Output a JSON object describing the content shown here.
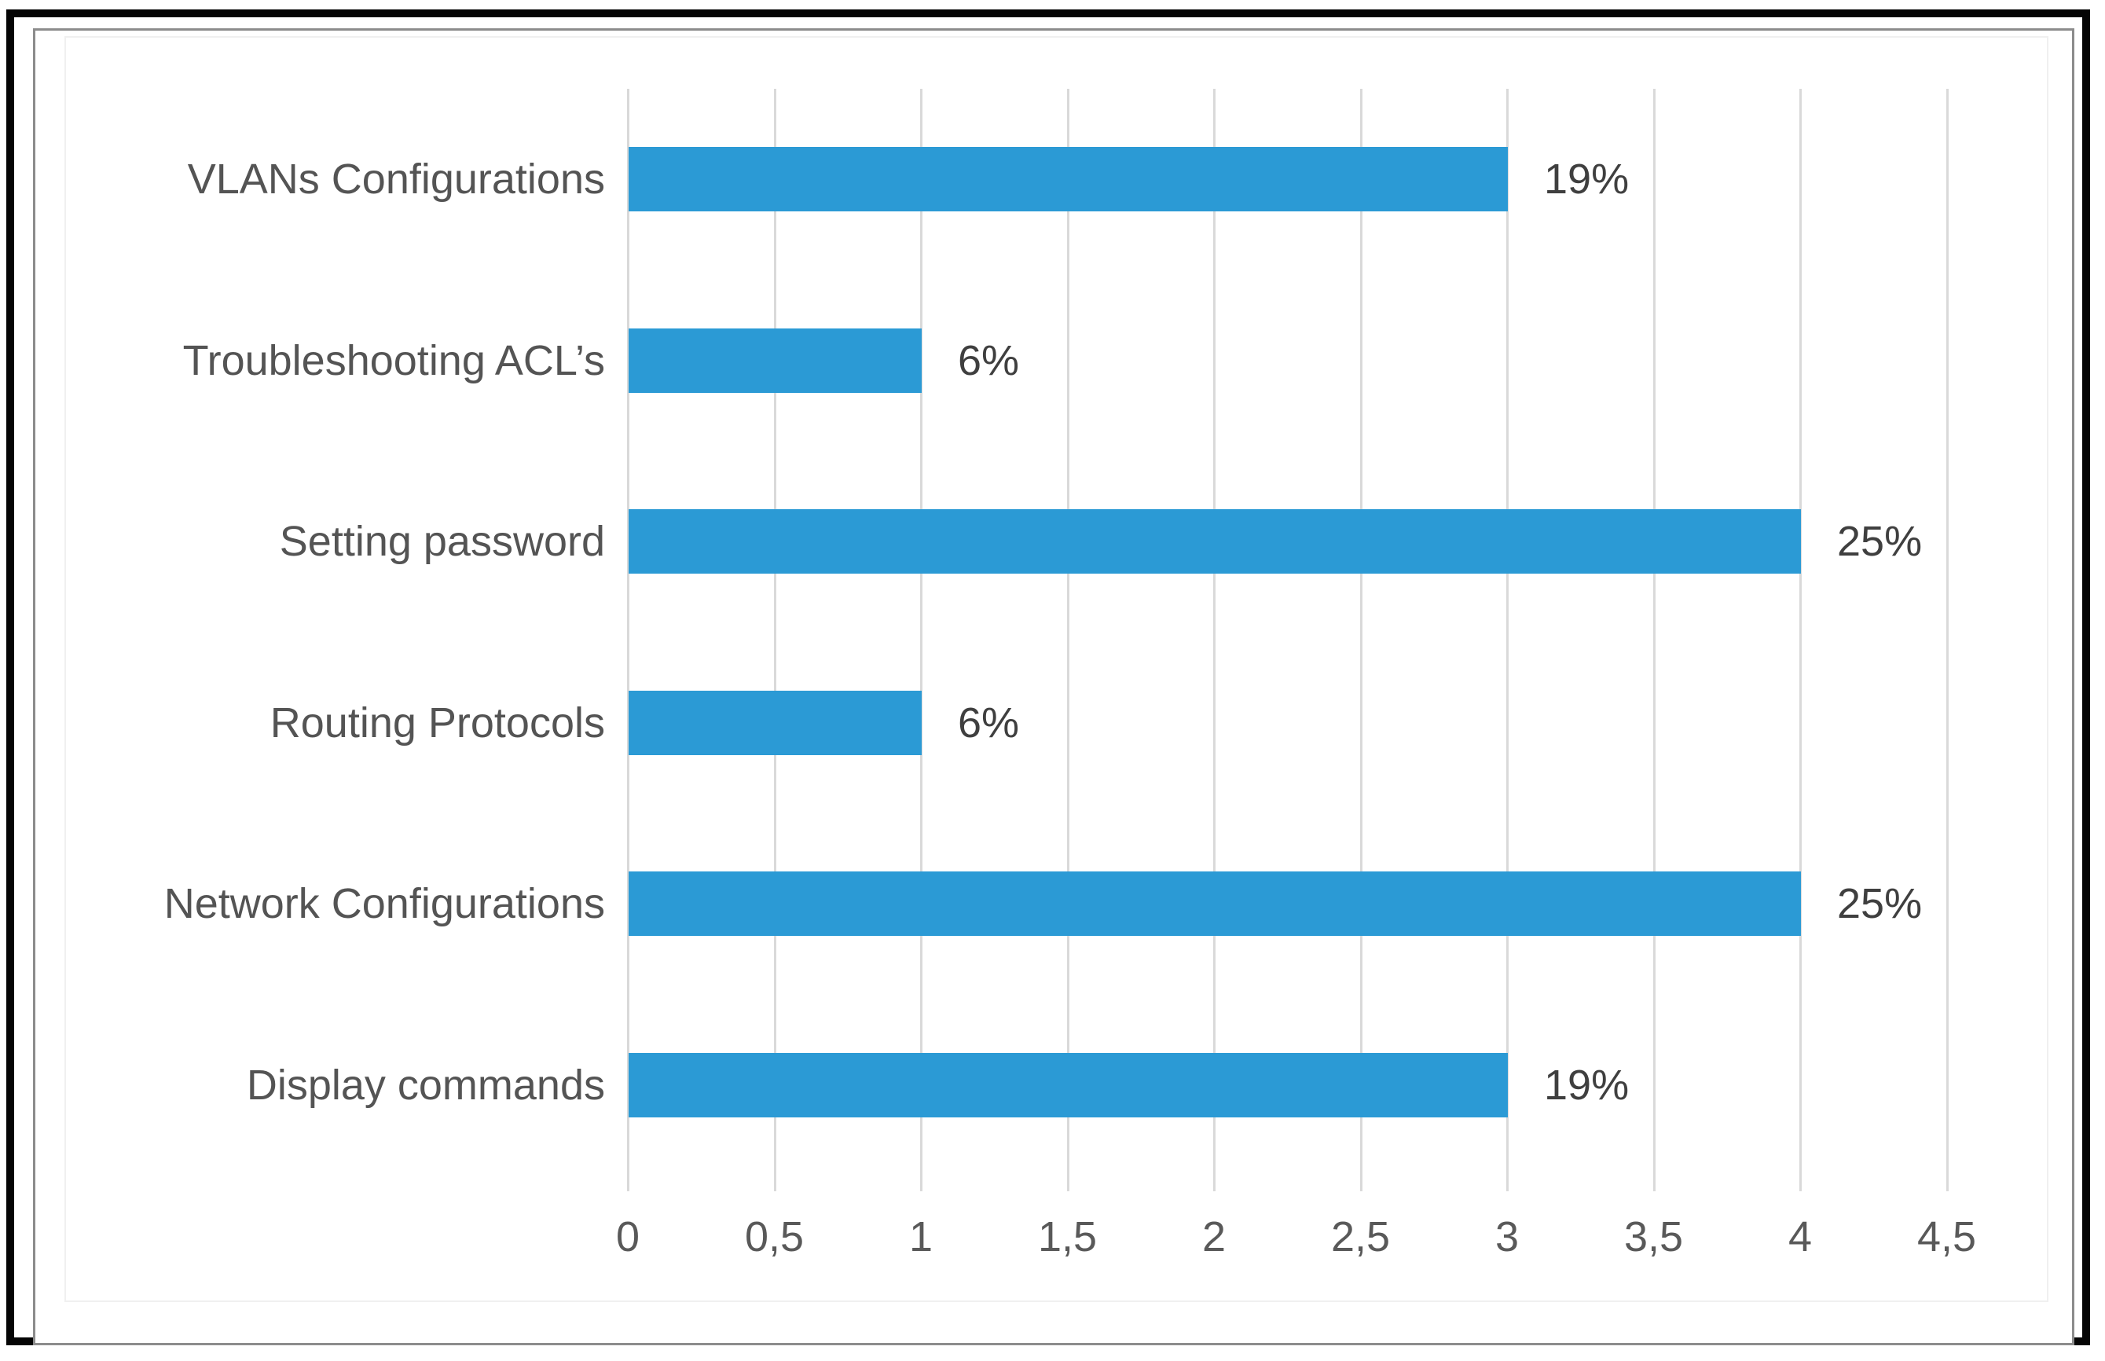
{
  "figure": {
    "background_color": "#ffffff",
    "outer_border_color": "#050505",
    "panel_border_color": "#8c8c8c"
  },
  "chart_data": {
    "type": "bar",
    "orientation": "horizontal",
    "title": "",
    "xlabel": "",
    "ylabel": "",
    "categories": [
      "VLANs Configurations",
      "Troubleshooting ACL’s",
      "Setting password",
      "Routing Protocols",
      "Network Configurations",
      "Display commands"
    ],
    "values": [
      3,
      1,
      4,
      1,
      4,
      3
    ],
    "data_labels": [
      "19%",
      "6%",
      "25%",
      "6%",
      "25%",
      "19%"
    ],
    "x_tick_labels": [
      "0",
      "0,5",
      "1",
      "1,5",
      "2",
      "2,5",
      "3",
      "3,5",
      "4",
      "4,5"
    ],
    "x_tick_values": [
      0,
      0.5,
      1,
      1.5,
      2,
      2.5,
      3,
      3.5,
      4,
      4.5
    ],
    "xlim": [
      0,
      4.5
    ],
    "grid": true,
    "legend": false,
    "bar_color": "#2b9ad5",
    "gridline_color": "#d9d9d9",
    "category_text_color": "#545454",
    "data_label_color": "#3f3f3f",
    "axis_tick_color": "#595959"
  }
}
